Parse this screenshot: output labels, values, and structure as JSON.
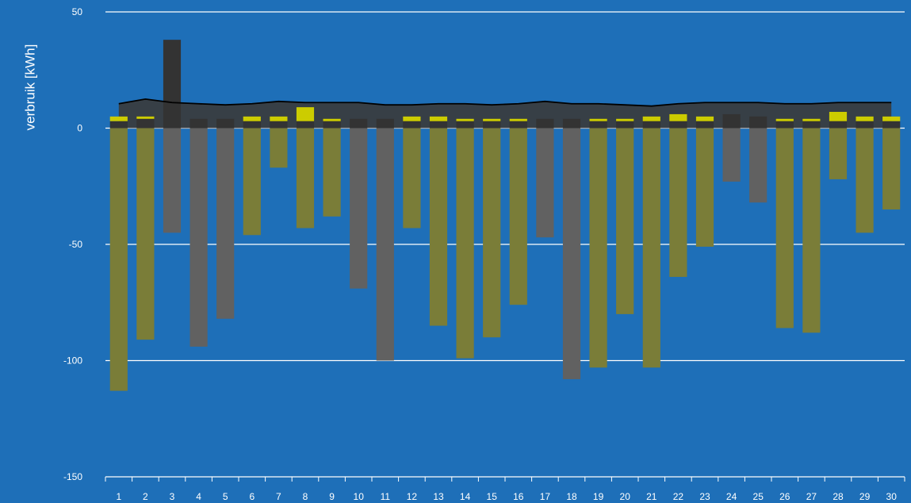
{
  "chart_data": {
    "type": "bar",
    "title": "",
    "xlabel": "",
    "ylabel": "verbruik [kWh]",
    "ylim": [
      -150,
      50
    ],
    "yticks": [
      50,
      0,
      -50,
      -100,
      -150
    ],
    "grid": true,
    "colors": {
      "background": "#1e6fb8",
      "consumption": "#333333",
      "solar": "#cccc00",
      "feedin_solar_day": "#7a7d38",
      "feedin_other_day": "#616161",
      "area": "#3a3a3a",
      "line": "#000000",
      "grid": "#ffffff"
    },
    "categories": [
      "1",
      "2",
      "3",
      "4",
      "5",
      "6",
      "7",
      "8",
      "9",
      "10",
      "11",
      "12",
      "13",
      "14",
      "15",
      "16",
      "17",
      "18",
      "19",
      "20",
      "21",
      "22",
      "23",
      "24",
      "25",
      "26",
      "27",
      "28",
      "29",
      "30"
    ],
    "series": [
      {
        "key": "consumption",
        "values": [
          3,
          4,
          38,
          4,
          4,
          3,
          3,
          3,
          3,
          4,
          4,
          3,
          3,
          3,
          3,
          3,
          4,
          4,
          3,
          3,
          3,
          3,
          3,
          6,
          5,
          3,
          3,
          3,
          3,
          3
        ]
      },
      {
        "key": "solar",
        "values": [
          2,
          1,
          0,
          0,
          0,
          2,
          2,
          6,
          1,
          0,
          0,
          2,
          2,
          1,
          1,
          1,
          0,
          0,
          1,
          1,
          2,
          3,
          2,
          0,
          0,
          1,
          1,
          4,
          2,
          2
        ]
      },
      {
        "key": "feedin",
        "values": [
          -113,
          -91,
          -45,
          -94,
          -82,
          -46,
          -17,
          -43,
          -38,
          -69,
          -100,
          -43,
          -85,
          -99,
          -90,
          -76,
          -47,
          -108,
          -103,
          -80,
          -103,
          -64,
          -51,
          -23,
          -32,
          -86,
          -88,
          -22,
          -45,
          -35
        ]
      },
      {
        "key": "average",
        "values": [
          10.5,
          12.5,
          11,
          10.5,
          10,
          10.5,
          11.5,
          11,
          11,
          11,
          10,
          10,
          10.5,
          10.5,
          10,
          10.5,
          11.5,
          10.5,
          10.5,
          10,
          9.5,
          10.5,
          11,
          11,
          11,
          10.5,
          10.5,
          11,
          11,
          11
        ]
      }
    ]
  }
}
